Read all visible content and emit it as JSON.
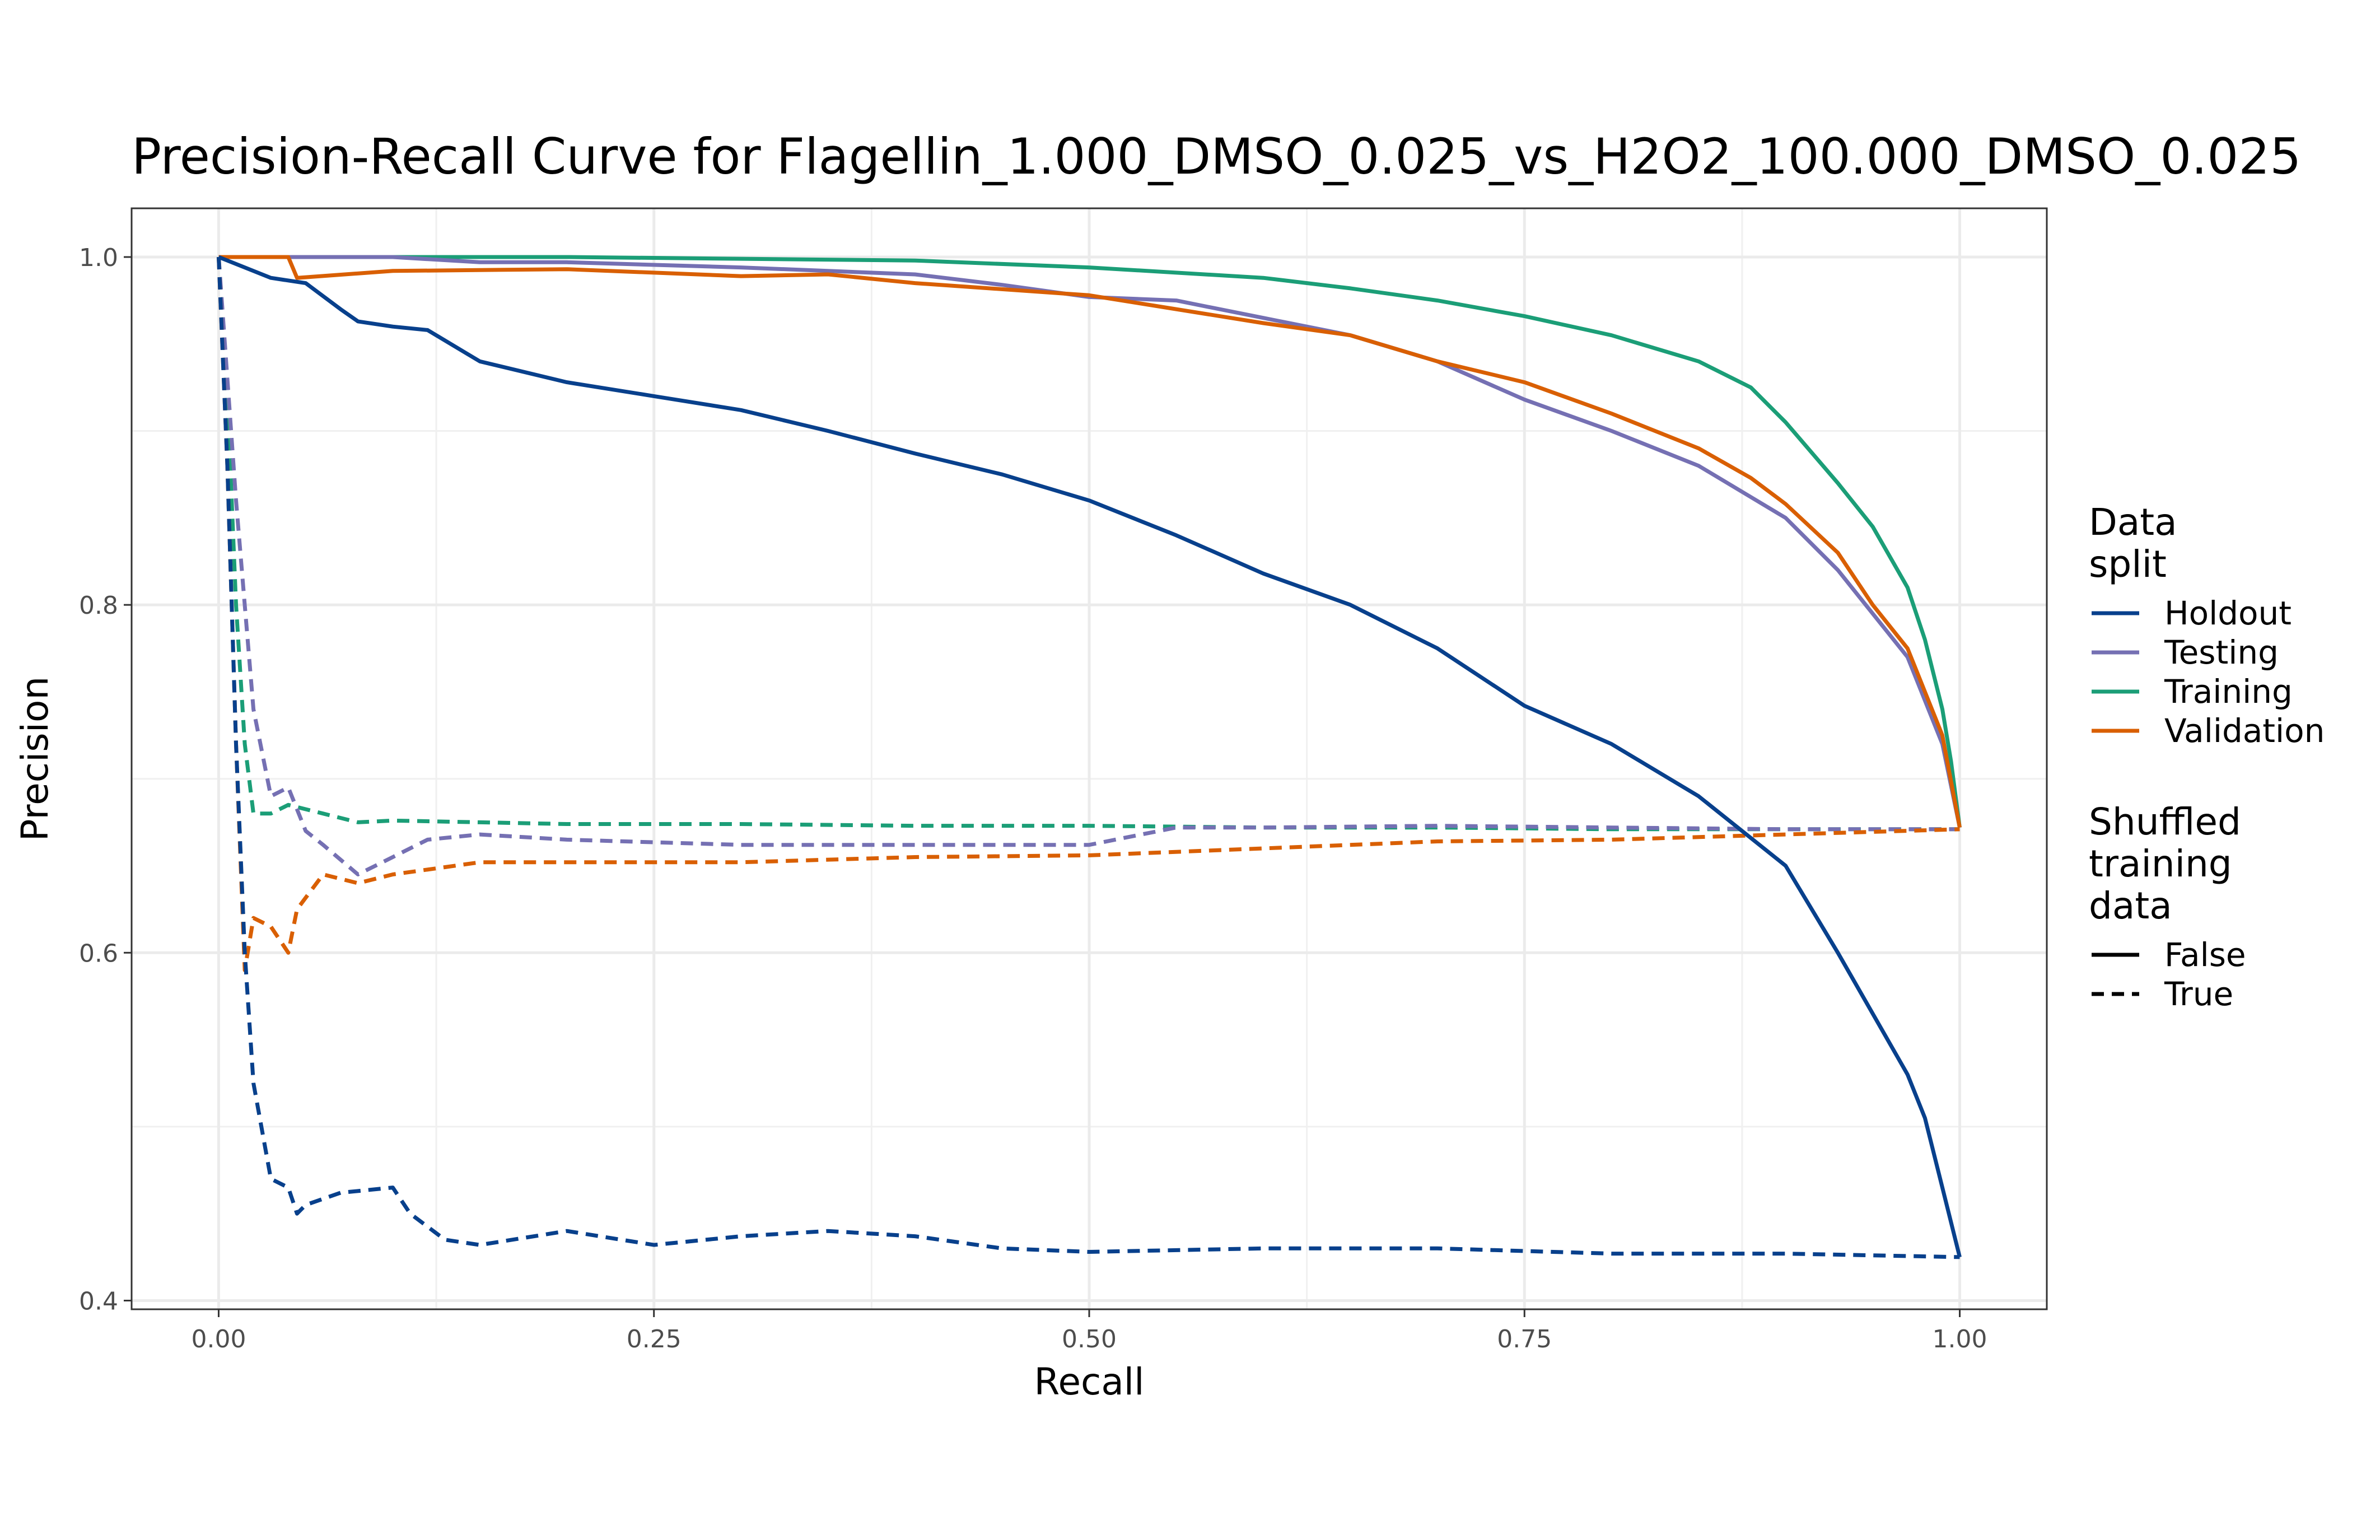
{
  "chart_data": {
    "type": "line",
    "title": "Precision-Recall Curve for Flagellin_1.000_DMSO_0.025_vs_H2O2_100.000_DMSO_0.025",
    "xlabel": "Recall",
    "ylabel": "Precision",
    "xlim": [
      -0.05,
      1.05
    ],
    "ylim": [
      0.395,
      1.028
    ],
    "x_ticks": [
      0.0,
      0.25,
      0.5,
      0.75,
      1.0
    ],
    "x_tick_labels": [
      "0.00",
      "0.25",
      "0.50",
      "0.75",
      "1.00"
    ],
    "y_ticks": [
      0.4,
      0.6,
      0.8,
      1.0
    ],
    "y_tick_labels": [
      "0.4",
      "0.6",
      "0.8",
      "1.0"
    ],
    "grid": true,
    "legend_position": "right",
    "legend": {
      "color_title": "Data split",
      "color_title_lines": [
        "Data",
        "split"
      ],
      "color_entries": [
        {
          "label": "Holdout",
          "color": "#08408c"
        },
        {
          "label": "Testing",
          "color": "#7570b3"
        },
        {
          "label": "Training",
          "color": "#1b9e77"
        },
        {
          "label": "Validation",
          "color": "#d95f02"
        }
      ],
      "linetype_title": "Shuffled training data",
      "linetype_title_lines": [
        "Shuffled",
        "training",
        "data"
      ],
      "linetype_entries": [
        {
          "label": "False",
          "dash": "solid"
        },
        {
          "label": "True",
          "dash": "dashed"
        }
      ]
    },
    "series": [
      {
        "split": "Training",
        "shuffled": "False",
        "color": "#1b9e77",
        "x": [
          0,
          0.1,
          0.2,
          0.3,
          0.4,
          0.5,
          0.6,
          0.65,
          0.7,
          0.75,
          0.8,
          0.85,
          0.88,
          0.9,
          0.93,
          0.95,
          0.97,
          0.98,
          0.99,
          0.995,
          1.0
        ],
        "y": [
          1.0,
          1.0,
          1.0,
          0.999,
          0.998,
          0.994,
          0.988,
          0.982,
          0.975,
          0.966,
          0.955,
          0.94,
          0.925,
          0.905,
          0.87,
          0.845,
          0.81,
          0.78,
          0.74,
          0.71,
          0.672
        ]
      },
      {
        "split": "Testing",
        "shuffled": "False",
        "color": "#7570b3",
        "x": [
          0,
          0.1,
          0.15,
          0.2,
          0.3,
          0.35,
          0.4,
          0.45,
          0.5,
          0.55,
          0.6,
          0.65,
          0.7,
          0.75,
          0.8,
          0.85,
          0.9,
          0.93,
          0.95,
          0.97,
          0.98,
          0.99,
          1.0
        ],
        "y": [
          1.0,
          1.0,
          0.997,
          0.997,
          0.994,
          0.992,
          0.99,
          0.984,
          0.977,
          0.975,
          0.965,
          0.955,
          0.94,
          0.918,
          0.9,
          0.88,
          0.85,
          0.82,
          0.795,
          0.77,
          0.745,
          0.72,
          0.672
        ]
      },
      {
        "split": "Validation",
        "shuffled": "False",
        "color": "#d95f02",
        "x": [
          0,
          0.04,
          0.045,
          0.1,
          0.2,
          0.3,
          0.35,
          0.4,
          0.5,
          0.6,
          0.65,
          0.7,
          0.75,
          0.8,
          0.85,
          0.88,
          0.9,
          0.93,
          0.95,
          0.97,
          0.98,
          0.99,
          1.0
        ],
        "y": [
          1.0,
          1.0,
          0.988,
          0.992,
          0.993,
          0.989,
          0.99,
          0.985,
          0.978,
          0.962,
          0.955,
          0.94,
          0.928,
          0.91,
          0.89,
          0.873,
          0.858,
          0.83,
          0.8,
          0.775,
          0.75,
          0.725,
          0.672
        ]
      },
      {
        "split": "Holdout",
        "shuffled": "False",
        "color": "#08408c",
        "x": [
          0,
          0.03,
          0.05,
          0.07,
          0.08,
          0.1,
          0.12,
          0.15,
          0.2,
          0.25,
          0.3,
          0.35,
          0.4,
          0.45,
          0.5,
          0.55,
          0.6,
          0.65,
          0.7,
          0.75,
          0.8,
          0.85,
          0.9,
          0.93,
          0.95,
          0.97,
          0.98,
          0.99,
          1.0
        ],
        "y": [
          1.0,
          0.988,
          0.985,
          0.97,
          0.963,
          0.96,
          0.958,
          0.94,
          0.928,
          0.92,
          0.912,
          0.9,
          0.887,
          0.875,
          0.86,
          0.84,
          0.818,
          0.8,
          0.775,
          0.742,
          0.72,
          0.69,
          0.65,
          0.6,
          0.565,
          0.53,
          0.505,
          0.465,
          0.425
        ]
      },
      {
        "split": "Training",
        "shuffled": "True",
        "color": "#1b9e77",
        "x": [
          0,
          0.005,
          0.01,
          0.015,
          0.02,
          0.03,
          0.04,
          0.06,
          0.08,
          0.1,
          0.15,
          0.2,
          0.3,
          0.4,
          0.5,
          0.6,
          0.7,
          0.8,
          0.9,
          1.0
        ],
        "y": [
          1.0,
          0.92,
          0.8,
          0.72,
          0.68,
          0.68,
          0.685,
          0.68,
          0.675,
          0.676,
          0.675,
          0.674,
          0.674,
          0.673,
          0.673,
          0.672,
          0.672,
          0.671,
          0.671,
          0.671
        ]
      },
      {
        "split": "Testing",
        "shuffled": "True",
        "color": "#7570b3",
        "x": [
          0,
          0.01,
          0.02,
          0.03,
          0.04,
          0.05,
          0.06,
          0.08,
          0.1,
          0.12,
          0.15,
          0.2,
          0.3,
          0.4,
          0.5,
          0.55,
          0.6,
          0.7,
          0.8,
          0.9,
          1.0
        ],
        "y": [
          1.0,
          0.86,
          0.74,
          0.69,
          0.695,
          0.67,
          0.662,
          0.645,
          0.655,
          0.665,
          0.668,
          0.665,
          0.662,
          0.662,
          0.662,
          0.672,
          0.672,
          0.673,
          0.672,
          0.671,
          0.671
        ]
      },
      {
        "split": "Validation",
        "shuffled": "True",
        "color": "#d95f02",
        "x": [
          0,
          0.005,
          0.01,
          0.015,
          0.02,
          0.03,
          0.04,
          0.045,
          0.06,
          0.08,
          0.1,
          0.15,
          0.2,
          0.3,
          0.4,
          0.5,
          0.6,
          0.7,
          0.8,
          0.9,
          1.0
        ],
        "y": [
          1.0,
          0.88,
          0.72,
          0.59,
          0.62,
          0.615,
          0.6,
          0.625,
          0.645,
          0.64,
          0.645,
          0.652,
          0.652,
          0.652,
          0.655,
          0.656,
          0.66,
          0.664,
          0.665,
          0.668,
          0.671
        ]
      },
      {
        "split": "Holdout",
        "shuffled": "True",
        "color": "#08408c",
        "x": [
          0,
          0.005,
          0.01,
          0.015,
          0.02,
          0.03,
          0.04,
          0.045,
          0.05,
          0.07,
          0.1,
          0.11,
          0.13,
          0.15,
          0.2,
          0.25,
          0.3,
          0.35,
          0.4,
          0.45,
          0.5,
          0.6,
          0.7,
          0.8,
          0.9,
          1.0
        ],
        "y": [
          1.0,
          0.88,
          0.72,
          0.6,
          0.525,
          0.47,
          0.465,
          0.45,
          0.455,
          0.462,
          0.465,
          0.45,
          0.435,
          0.432,
          0.44,
          0.432,
          0.437,
          0.44,
          0.437,
          0.43,
          0.428,
          0.43,
          0.43,
          0.427,
          0.427,
          0.425
        ]
      }
    ]
  }
}
